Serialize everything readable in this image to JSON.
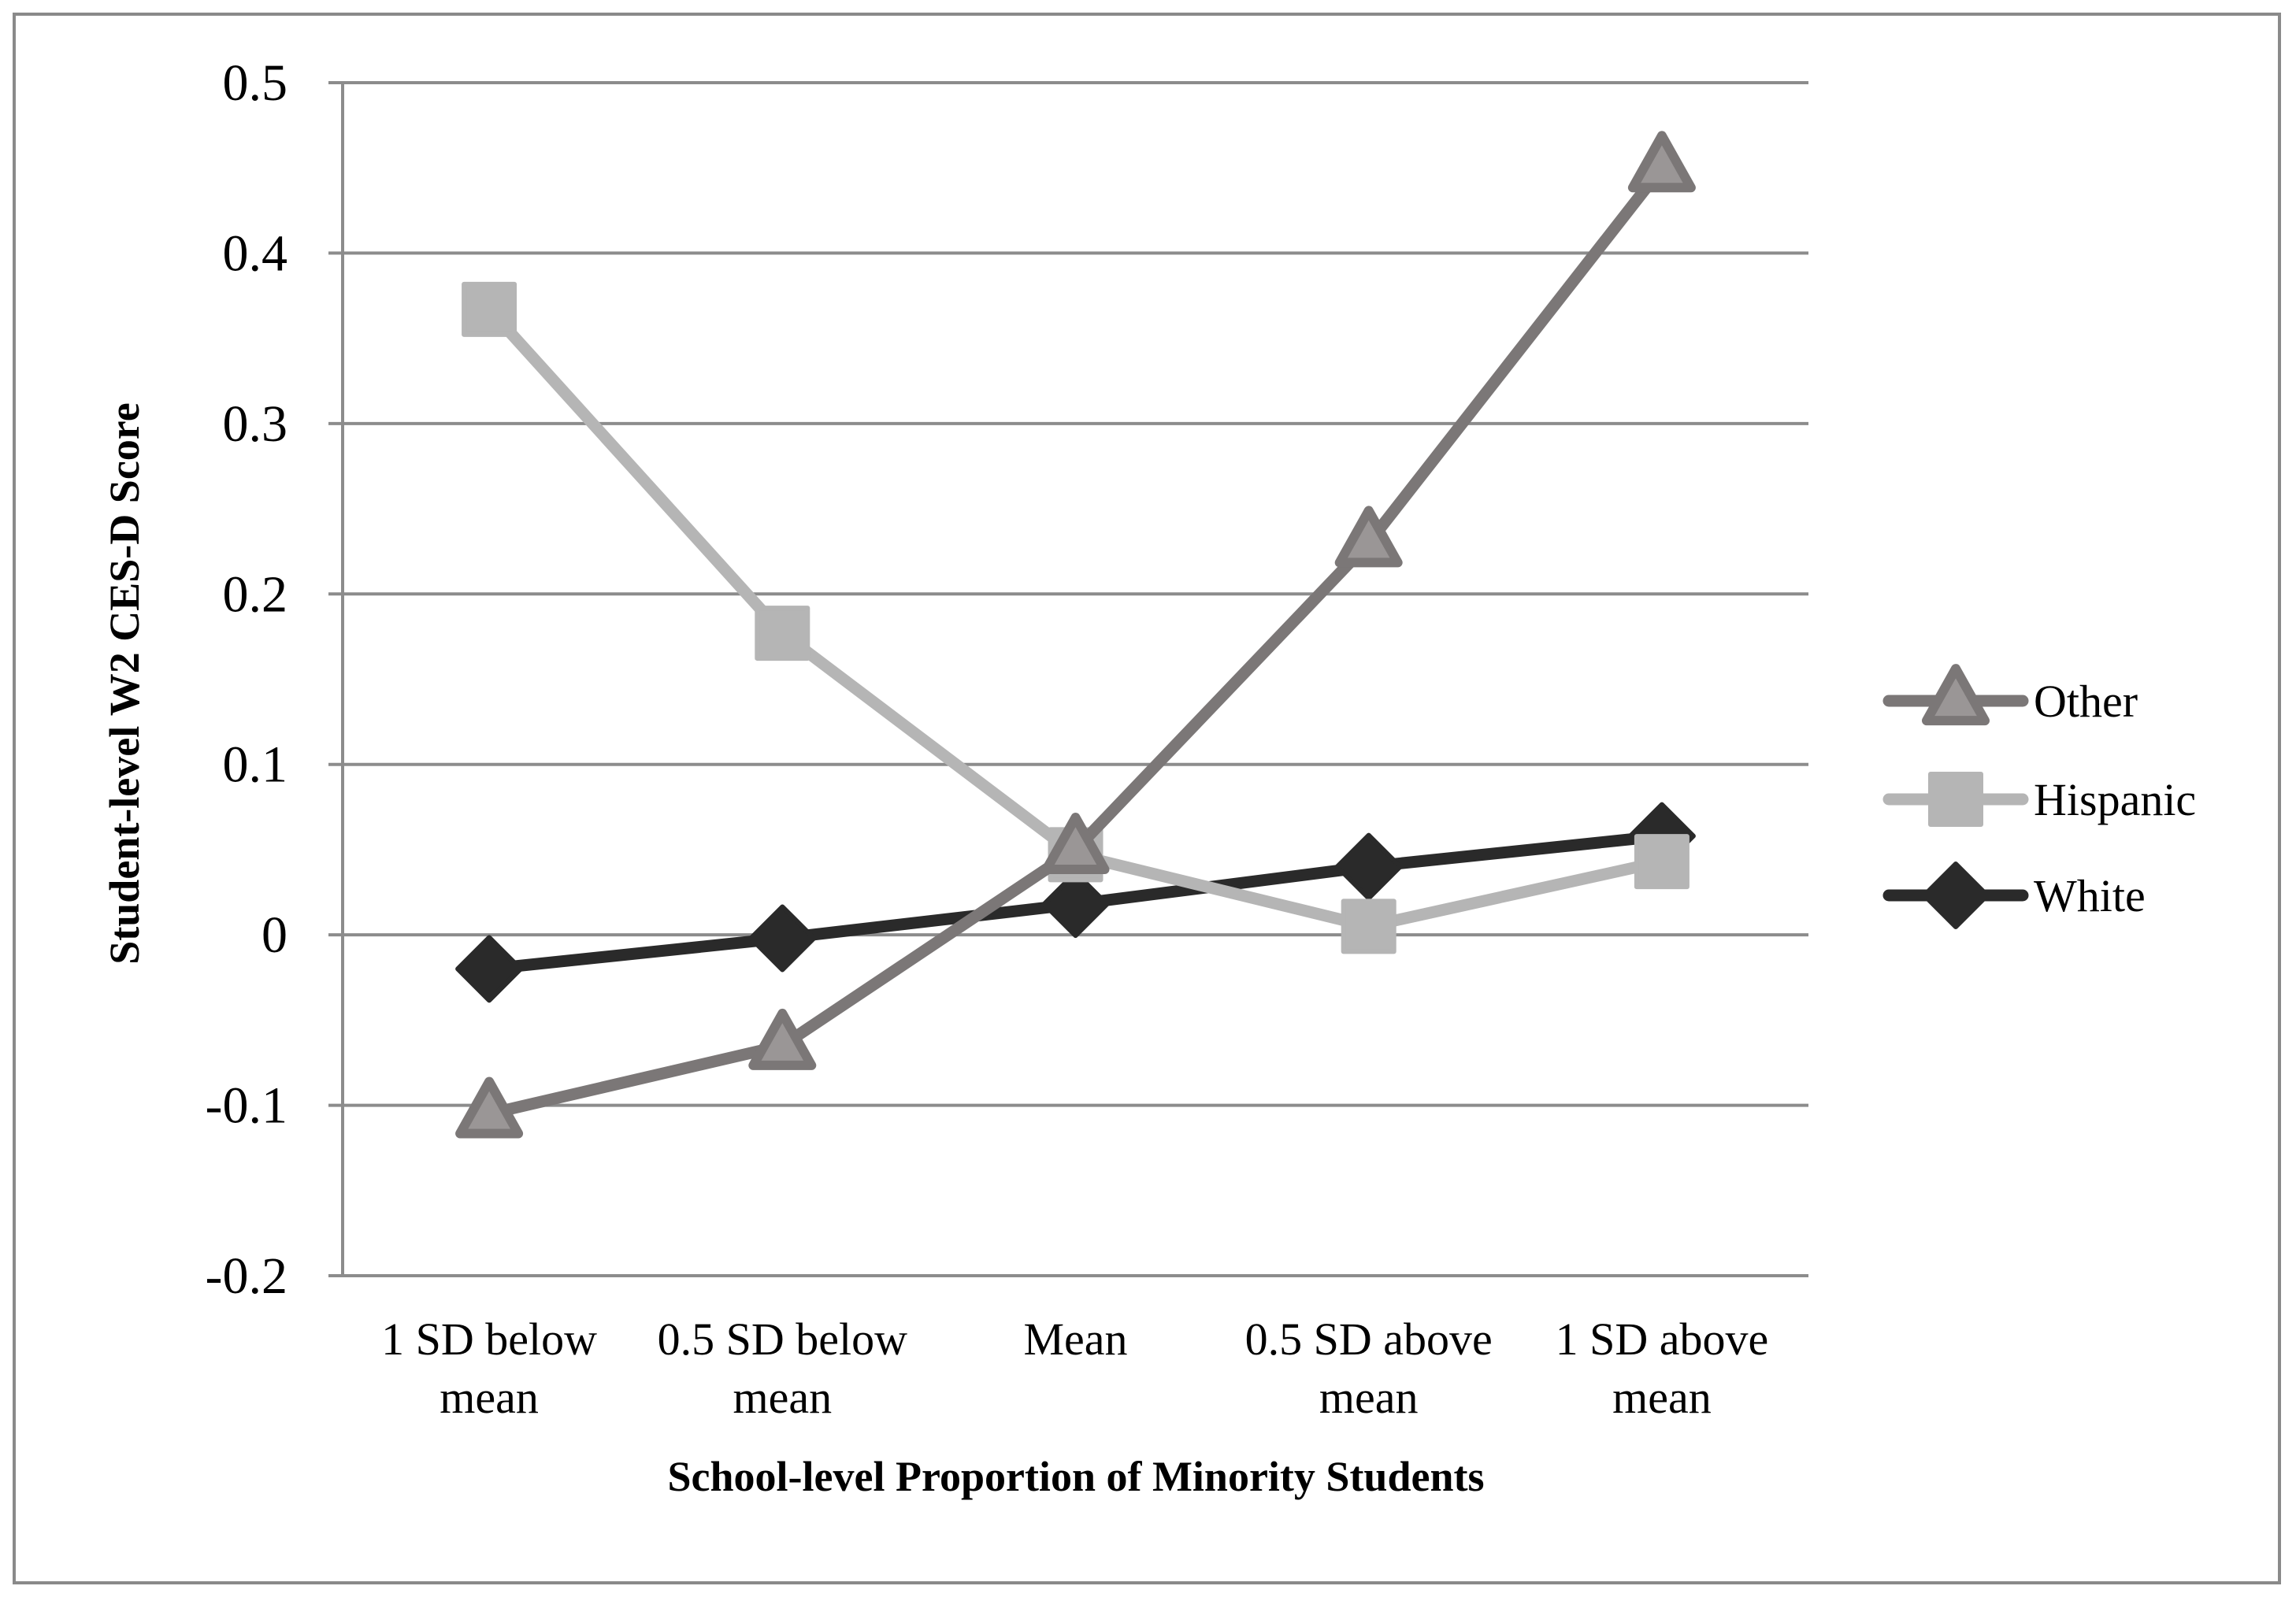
{
  "chart_data": {
    "type": "line",
    "title": "",
    "xlabel": "School-level Proportion of Minority Students",
    "ylabel": "Student-level W2 CES-D Score",
    "categories": [
      [
        "1 SD below",
        "mean"
      ],
      [
        "0.5 SD below",
        "mean"
      ],
      [
        "Mean"
      ],
      [
        "0.5 SD above",
        "mean"
      ],
      [
        "1 SD above",
        "mean"
      ]
    ],
    "ylim": [
      -0.2,
      0.5
    ],
    "yticks": [
      0.5,
      0.4,
      0.3,
      0.2,
      0.1,
      0,
      -0.1,
      -0.2
    ],
    "ytick_labels": [
      "0.5",
      "0.4",
      "0.3",
      "0.2",
      "0.1",
      "0",
      "-0.1",
      "-0.2"
    ],
    "grid": true,
    "legend_position": "right",
    "series": [
      {
        "name": "Other",
        "marker": "triangle",
        "color": "#7b7777",
        "values": [
          -0.105,
          -0.065,
          0.05,
          0.23,
          0.45
        ]
      },
      {
        "name": "Hispanic",
        "marker": "square",
        "color": "#b5b5b5",
        "values": [
          0.367,
          0.177,
          0.047,
          0.005,
          0.043
        ]
      },
      {
        "name": "White",
        "marker": "diamond",
        "color": "#2a2a2a",
        "values": [
          -0.02,
          -0.002,
          0.018,
          0.04,
          0.058
        ]
      }
    ]
  }
}
